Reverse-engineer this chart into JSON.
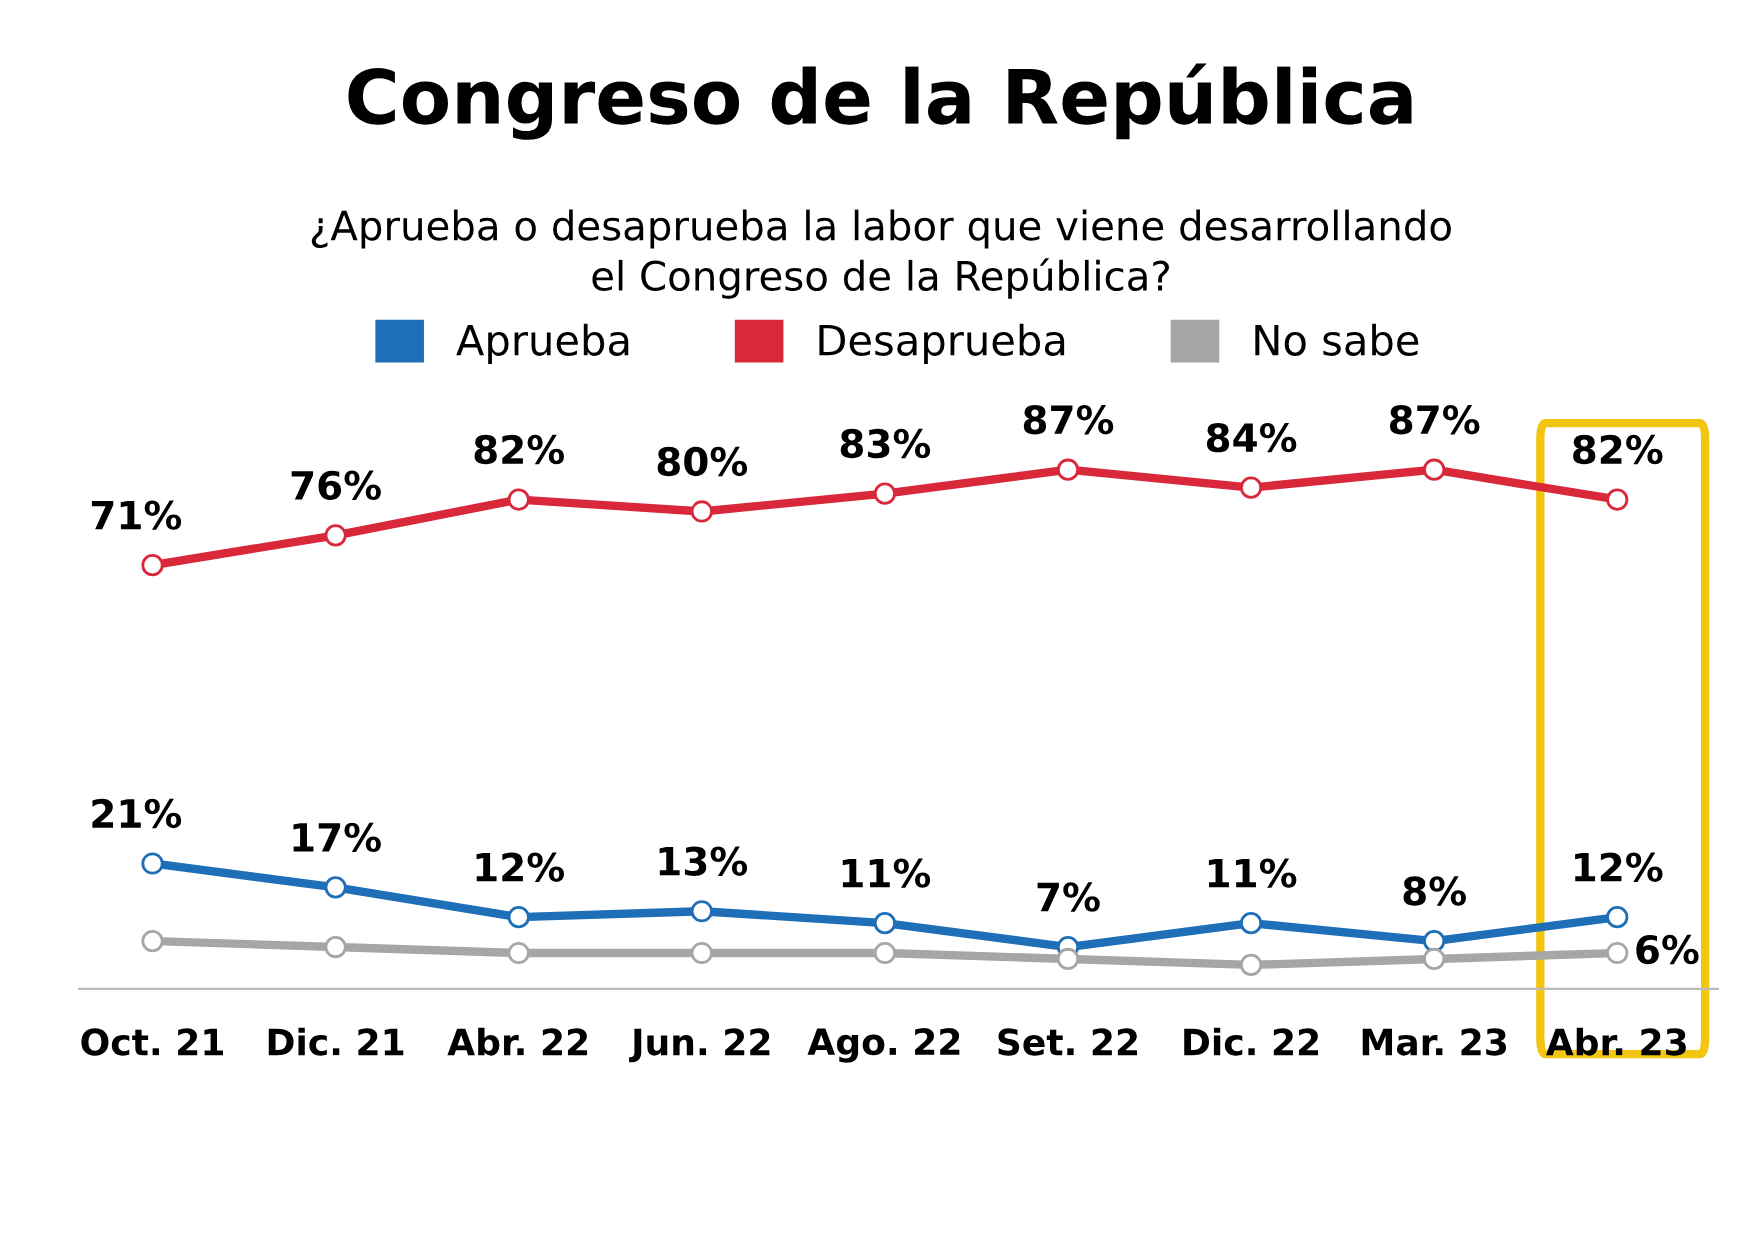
{
  "chart_data": {
    "type": "line",
    "title": "Congreso de la República",
    "subtitle": "¿Aprueba o desaprueba la labor que viene desarrollando\nel Congreso de la República?",
    "categories": [
      "Oct. 21",
      "Dic. 21",
      "Abr. 22",
      "Jun. 22",
      "Ago. 22",
      "Set. 22",
      "Dic. 22",
      "Mar. 23",
      "Abr. 23"
    ],
    "series": [
      {
        "name": "Aprueba",
        "color": "#1f6fb8",
        "values": [
          21,
          17,
          12,
          13,
          11,
          7,
          11,
          8,
          12
        ],
        "value_labels": [
          "21%",
          "17%",
          "12%",
          "13%",
          "11%",
          "7%",
          "11%",
          "8%",
          "12%"
        ]
      },
      {
        "name": "Desaprueba",
        "color": "#d9283a",
        "values": [
          71,
          76,
          82,
          80,
          83,
          87,
          84,
          87,
          82
        ],
        "value_labels": [
          "71%",
          "76%",
          "82%",
          "80%",
          "83%",
          "87%",
          "84%",
          "87%",
          "82%"
        ]
      },
      {
        "name": "No sabe",
        "color": "#a6a6a6",
        "values": [
          8,
          7,
          6,
          6,
          6,
          5,
          4,
          5,
          6
        ],
        "value_labels": [
          null,
          null,
          null,
          null,
          null,
          null,
          null,
          null,
          "6%"
        ]
      }
    ],
    "marker": "circle",
    "legend": "top",
    "grid": false
  }
}
